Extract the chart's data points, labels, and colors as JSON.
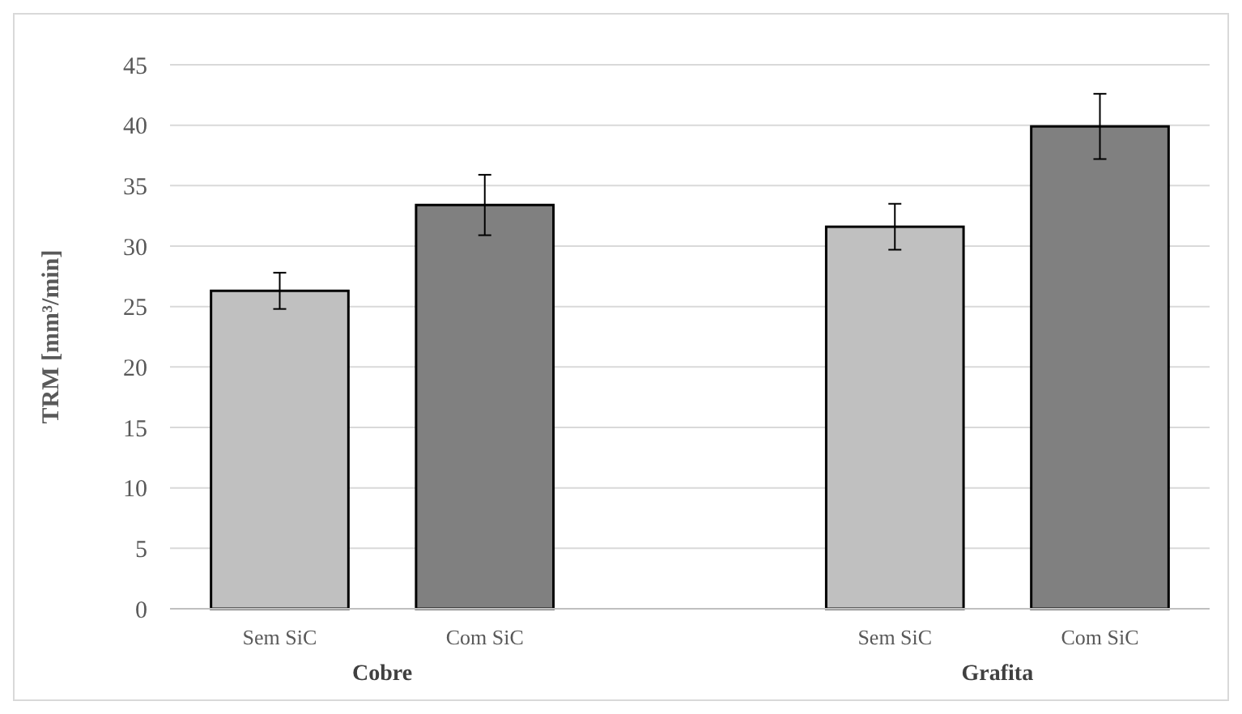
{
  "chart_data": {
    "type": "bar",
    "ylabel": "TRM [mm³/min]",
    "categories": [
      "Sem SiC",
      "Com SiC",
      null,
      "Sem SiC",
      "Com SiC"
    ],
    "values": [
      26.3,
      33.4,
      null,
      31.6,
      39.9
    ],
    "colors": [
      "#c0c0c0",
      "#808080",
      null,
      "#c0c0c0",
      "#808080"
    ],
    "errors": [
      1.5,
      2.5,
      null,
      1.9,
      2.7
    ],
    "ylim": [
      0,
      45
    ],
    "yticks": [
      0,
      5,
      10,
      15,
      20,
      25,
      30,
      35,
      40,
      45
    ],
    "grid": "y",
    "annotations": [
      "Cobre",
      "Grafita"
    ]
  }
}
